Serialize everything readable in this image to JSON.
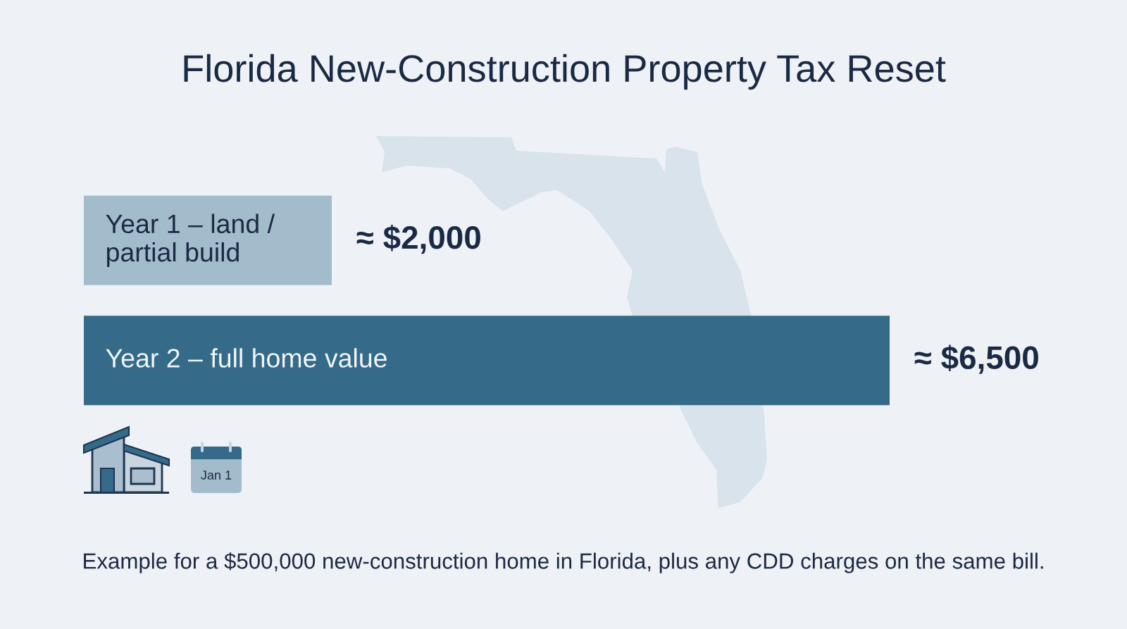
{
  "chart_data": {
    "type": "bar",
    "orientation": "horizontal",
    "title": "Florida New-Construction Property Tax Reset",
    "categories": [
      "Year 1 – land / partial build",
      "Year 2 – full home value"
    ],
    "values": [
      2000,
      6500
    ],
    "colors": [
      "#a3bccc",
      "#356b88"
    ],
    "value_labels": [
      "≈ $2,000",
      "≈ $6,500"
    ],
    "annotations": [
      "Jan 1",
      "Example for a $500,000 new-construction home in Florida, plus any CDD charges on the same bill."
    ]
  }
}
